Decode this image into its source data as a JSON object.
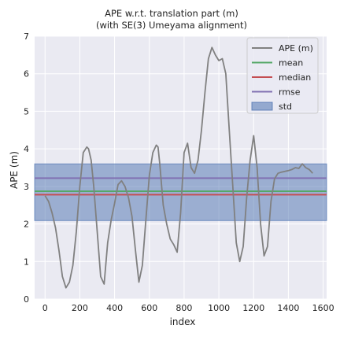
{
  "chart_data": {
    "type": "line",
    "title": [
      "APE w.r.t. translation part (m)",
      "(with SE(3) Umeyama alignment)"
    ],
    "xlabel": "index",
    "ylabel": "APE (m)",
    "xlim": [
      -60,
      1620
    ],
    "ylim": [
      0,
      7
    ],
    "xticks": [
      "0",
      "200",
      "400",
      "600",
      "800",
      "1000",
      "1200",
      "1400",
      "1600"
    ],
    "yticks": [
      "0",
      "1",
      "2",
      "3",
      "4",
      "5",
      "6",
      "7"
    ],
    "grid": true,
    "legend_position": "top-right",
    "stats": {
      "mean": 2.87,
      "median": 2.78,
      "rmse": 3.22,
      "std": 1.49,
      "std_band": [
        2.09,
        3.6
      ]
    },
    "series": [
      {
        "name": "APE (m)",
        "color": "#808080",
        "x": [
          0,
          20,
          40,
          60,
          80,
          100,
          120,
          140,
          160,
          180,
          200,
          220,
          240,
          250,
          265,
          280,
          300,
          320,
          340,
          360,
          380,
          400,
          420,
          440,
          460,
          480,
          500,
          520,
          540,
          560,
          580,
          600,
          620,
          640,
          650,
          660,
          680,
          700,
          720,
          740,
          760,
          780,
          800,
          820,
          840,
          860,
          880,
          900,
          920,
          940,
          960,
          980,
          1000,
          1020,
          1040,
          1060,
          1080,
          1100,
          1120,
          1140,
          1160,
          1180,
          1200,
          1220,
          1240,
          1260,
          1280,
          1300,
          1320,
          1340,
          1360,
          1380,
          1400,
          1420,
          1440,
          1460,
          1480,
          1500,
          1520,
          1540
        ],
        "values": [
          2.75,
          2.6,
          2.3,
          1.9,
          1.3,
          0.6,
          0.3,
          0.45,
          0.9,
          1.8,
          3.0,
          3.9,
          4.05,
          4.0,
          3.7,
          3.0,
          1.8,
          0.6,
          0.4,
          1.5,
          2.1,
          2.55,
          3.05,
          3.15,
          3.0,
          2.7,
          2.2,
          1.3,
          0.45,
          0.9,
          2.1,
          3.3,
          3.9,
          4.1,
          4.05,
          3.6,
          2.5,
          2.0,
          1.6,
          1.45,
          1.25,
          2.3,
          3.9,
          4.15,
          3.5,
          3.35,
          3.7,
          4.5,
          5.5,
          6.4,
          6.7,
          6.5,
          6.35,
          6.4,
          6.0,
          4.5,
          3.0,
          1.5,
          1.0,
          1.4,
          2.7,
          3.7,
          4.35,
          3.5,
          2.0,
          1.15,
          1.4,
          2.6,
          3.2,
          3.35,
          3.38,
          3.4,
          3.42,
          3.45,
          3.5,
          3.48,
          3.6,
          3.5,
          3.45,
          3.35
        ]
      },
      {
        "name": "mean",
        "color": "#55a868"
      },
      {
        "name": "median",
        "color": "#c44e52"
      },
      {
        "name": "rmse",
        "color": "#8172b2"
      },
      {
        "name": "std",
        "color": "#4c72b0"
      }
    ]
  }
}
